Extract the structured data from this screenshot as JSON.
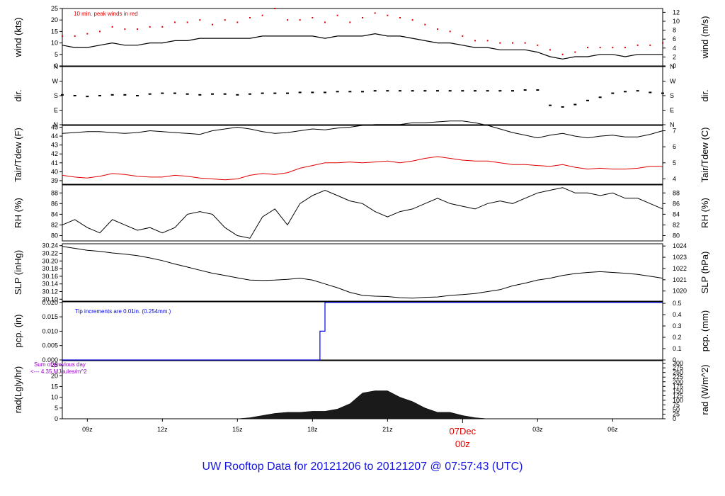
{
  "footer": {
    "title": "UW Rooftop Data for 20121206  to  20121207 @ 07:57:43  (UTC)",
    "title_color": "#1616e0"
  },
  "colors": {
    "line": "#000000",
    "red": "#e00000",
    "blue": "#0000ee",
    "purple": "#9900cc"
  },
  "x_axis": {
    "min": 0,
    "max": 24,
    "ticks": [
      {
        "x": 1,
        "label": "09z"
      },
      {
        "x": 4,
        "label": "12z"
      },
      {
        "x": 7,
        "label": "15z"
      },
      {
        "x": 10,
        "label": "18z"
      },
      {
        "x": 13,
        "label": "21z"
      },
      {
        "x": 19,
        "label": "03z"
      },
      {
        "x": 22,
        "label": "06z"
      }
    ],
    "day_mark": {
      "x": 16,
      "date": "07Dec",
      "hour": "00z"
    }
  },
  "chart_data": [
    {
      "type": "line",
      "id": "wind",
      "ylabel": "wind (kts)",
      "ylabel_right": "wind (m/s)",
      "ylim": [
        0,
        25
      ],
      "right_ylim": [
        0,
        12.86
      ],
      "yticks": [
        0,
        5,
        10,
        15,
        20,
        25
      ],
      "right_ticks": [
        0,
        2,
        4,
        6,
        8,
        10,
        12
      ],
      "annotation": "10 min. peak winds in red",
      "series": [
        {
          "role": "mean",
          "x": [
            0,
            0.5,
            1,
            1.5,
            2,
            2.5,
            3,
            3.5,
            4,
            4.5,
            5,
            5.5,
            6,
            6.5,
            7,
            7.5,
            8,
            8.5,
            9,
            9.5,
            10,
            10.5,
            11,
            11.5,
            12,
            12.5,
            13,
            13.5,
            14,
            14.5,
            15,
            15.5,
            16,
            16.5,
            17,
            17.5,
            18,
            18.5,
            19,
            19.5,
            20,
            20.5,
            21,
            21.5,
            22,
            22.5,
            23,
            23.5,
            24
          ],
          "y": [
            9,
            8,
            8,
            9,
            10,
            9,
            9,
            10,
            10,
            11,
            11,
            12,
            12,
            12,
            12,
            12,
            13,
            13,
            13,
            13,
            13,
            12,
            13,
            13,
            13,
            14,
            13,
            13,
            12,
            11,
            10,
            10,
            9,
            8,
            8,
            7,
            7,
            7,
            6,
            4,
            3,
            4,
            4,
            5,
            5,
            4,
            5,
            5,
            5
          ]
        },
        {
          "role": "peak",
          "x": [
            0,
            0.5,
            1,
            1.5,
            2,
            2.5,
            3,
            3.5,
            4,
            4.5,
            5,
            5.5,
            6,
            6.5,
            7,
            7.5,
            8,
            8.5,
            9,
            9.5,
            10,
            10.5,
            11,
            11.5,
            12,
            12.5,
            13,
            13.5,
            14,
            14.5,
            15,
            15.5,
            16,
            16.5,
            17,
            17.5,
            18,
            18.5,
            19,
            19.5,
            20,
            20.5,
            21,
            21.5,
            22,
            22.5,
            23,
            23.5,
            24
          ],
          "y": [
            13,
            13,
            14,
            15,
            17,
            16,
            16,
            17,
            17,
            19,
            19,
            20,
            18,
            20,
            19,
            21,
            22,
            25,
            20,
            20,
            21,
            19,
            22,
            19,
            21,
            23,
            22,
            21,
            20,
            18,
            16,
            15,
            13,
            11,
            11,
            10,
            10,
            10,
            9,
            7,
            5,
            6,
            8,
            8,
            8,
            8,
            9,
            9,
            10
          ]
        }
      ]
    },
    {
      "type": "scatter",
      "id": "dir",
      "ylabel": "dir.",
      "ylabel_right": "dir.",
      "ytick_labels": [
        "N",
        "E",
        "S",
        "W",
        "N"
      ],
      "ytick_values": [
        0,
        90,
        180,
        270,
        360
      ],
      "ylim": [
        0,
        360
      ],
      "x": [
        0,
        0.5,
        1,
        1.5,
        2,
        2.5,
        3,
        3.5,
        4,
        4.5,
        5,
        5.5,
        6,
        6.5,
        7,
        7.5,
        8,
        8.5,
        9,
        9.5,
        10,
        10.5,
        11,
        11.5,
        12,
        12.5,
        13,
        13.5,
        14,
        14.5,
        15,
        15.5,
        16,
        16.5,
        17,
        17.5,
        18,
        18.5,
        19,
        19.5,
        20,
        20.5,
        21,
        21.5,
        22,
        22.5,
        23,
        23.5,
        24
      ],
      "y": [
        185,
        180,
        175,
        180,
        185,
        185,
        180,
        190,
        195,
        195,
        190,
        185,
        190,
        190,
        185,
        190,
        195,
        195,
        195,
        200,
        200,
        200,
        205,
        205,
        205,
        210,
        210,
        210,
        210,
        210,
        210,
        210,
        210,
        210,
        210,
        210,
        210,
        215,
        215,
        120,
        110,
        125,
        150,
        170,
        195,
        205,
        210,
        200,
        195
      ]
    },
    {
      "type": "line",
      "id": "temp",
      "ylabel": "Tair/Tdew (F)",
      "ylabel_right": "Tair/Tdew (C)",
      "ylim": [
        38.6,
        45.2
      ],
      "right_ylim": [
        3.667,
        7.333
      ],
      "yticks": [
        39,
        40,
        41,
        42,
        43,
        44,
        45
      ],
      "right_ticks": [
        4,
        5,
        6,
        7
      ],
      "series": [
        {
          "role": "air",
          "color": "#000000",
          "x": [
            0,
            0.5,
            1,
            1.5,
            2,
            2.5,
            3,
            3.5,
            4,
            4.5,
            5,
            5.5,
            6,
            6.5,
            7,
            7.5,
            8,
            8.5,
            9,
            9.5,
            10,
            10.5,
            11,
            11.5,
            12,
            12.5,
            13,
            13.5,
            14,
            14.5,
            15,
            15.5,
            16,
            16.5,
            17,
            17.5,
            18,
            18.5,
            19,
            19.5,
            20,
            20.5,
            21,
            21.5,
            22,
            22.5,
            23,
            23.5,
            24
          ],
          "y": [
            44.3,
            44.4,
            44.5,
            44.5,
            44.4,
            44.3,
            44.4,
            44.6,
            44.5,
            44.4,
            44.3,
            44.2,
            44.6,
            44.8,
            45.0,
            44.8,
            44.5,
            44.3,
            44.4,
            44.6,
            44.8,
            44.7,
            44.9,
            45.0,
            45.2,
            45.3,
            45.3,
            45.3,
            45.5,
            45.5,
            45.6,
            45.7,
            45.7,
            45.5,
            45.2,
            44.8,
            44.4,
            44.1,
            43.8,
            44.1,
            44.3,
            44.0,
            43.8,
            44.0,
            44.1,
            43.9,
            43.9,
            44.2,
            44.6
          ]
        },
        {
          "role": "dew",
          "color": "#e00000",
          "x": [
            0,
            0.5,
            1,
            1.5,
            2,
            2.5,
            3,
            3.5,
            4,
            4.5,
            5,
            5.5,
            6,
            6.5,
            7,
            7.5,
            8,
            8.5,
            9,
            9.5,
            10,
            10.5,
            11,
            11.5,
            12,
            12.5,
            13,
            13.5,
            14,
            14.5,
            15,
            15.5,
            16,
            16.5,
            17,
            17.5,
            18,
            18.5,
            19,
            19.5,
            20,
            20.5,
            21,
            21.5,
            22,
            22.5,
            23,
            23.5,
            24
          ],
          "y": [
            39.6,
            39.4,
            39.3,
            39.5,
            39.8,
            39.7,
            39.5,
            39.4,
            39.4,
            39.6,
            39.5,
            39.3,
            39.2,
            39.1,
            39.2,
            39.6,
            39.8,
            39.7,
            39.9,
            40.4,
            40.7,
            41.0,
            41.0,
            41.1,
            41.0,
            41.1,
            41.2,
            41.0,
            41.2,
            41.5,
            41.7,
            41.5,
            41.3,
            41.2,
            41.2,
            41.0,
            40.8,
            40.8,
            40.7,
            40.6,
            40.8,
            40.5,
            40.3,
            40.4,
            40.3,
            40.3,
            40.4,
            40.6,
            40.6
          ]
        }
      ]
    },
    {
      "type": "line",
      "id": "rh",
      "ylabel": "RH (%)",
      "ylabel_right": "RH (%)",
      "ylim": [
        79,
        89.5
      ],
      "yticks": [
        80,
        82,
        84,
        86,
        88
      ],
      "right_ticks": [
        80,
        82,
        84,
        86,
        88
      ],
      "x": [
        0,
        0.5,
        1,
        1.5,
        2,
        2.5,
        3,
        3.5,
        4,
        4.5,
        5,
        5.5,
        6,
        6.5,
        7,
        7.5,
        8,
        8.5,
        9,
        9.5,
        10,
        10.5,
        11,
        11.5,
        12,
        12.5,
        13,
        13.5,
        14,
        14.5,
        15,
        15.5,
        16,
        16.5,
        17,
        17.5,
        18,
        18.5,
        19,
        19.5,
        20,
        20.5,
        21,
        21.5,
        22,
        22.5,
        23,
        23.5,
        24
      ],
      "y": [
        82,
        83,
        81.5,
        80.5,
        83,
        82,
        81,
        81.5,
        80.5,
        81.5,
        84,
        84.5,
        84,
        81.5,
        80,
        79.5,
        83.5,
        85,
        82,
        86,
        87.5,
        88.5,
        87.5,
        86.5,
        86,
        84.5,
        83.5,
        84.5,
        85,
        86,
        87,
        86,
        85.5,
        85,
        86,
        86.5,
        86,
        87,
        88,
        88.5,
        89,
        88,
        88,
        87.5,
        88,
        87,
        87,
        86,
        85
      ]
    },
    {
      "type": "line",
      "id": "slp",
      "ylabel": "SLP (inHg)",
      "ylabel_right": "SLP (hPa)",
      "ylim": [
        30.095,
        30.245
      ],
      "right_ylim": [
        1019.1,
        1024.2
      ],
      "yticks": [
        30.1,
        30.12,
        30.14,
        30.16,
        30.18,
        30.2,
        30.22,
        30.24
      ],
      "right_ticks": [
        1020,
        1021,
        1022,
        1023,
        1024
      ],
      "ytick_labels": [
        "30.10",
        "30.12",
        "30.14",
        "30.16",
        "30.18",
        "30.20",
        "30.22",
        "30.24"
      ],
      "x": [
        0,
        0.5,
        1,
        1.5,
        2,
        2.5,
        3,
        3.5,
        4,
        4.5,
        5,
        5.5,
        6,
        6.5,
        7,
        7.5,
        8,
        8.5,
        9,
        9.5,
        10,
        10.5,
        11,
        11.5,
        12,
        12.5,
        13,
        13.5,
        14,
        14.5,
        15,
        15.5,
        16,
        16.5,
        17,
        17.5,
        18,
        18.5,
        19,
        19.5,
        20,
        20.5,
        21,
        21.5,
        22,
        22.5,
        23,
        23.5,
        24
      ],
      "y": [
        30.238,
        30.233,
        30.228,
        30.225,
        30.221,
        30.218,
        30.214,
        30.208,
        30.201,
        30.192,
        30.184,
        30.176,
        30.168,
        30.162,
        30.156,
        30.15,
        30.149,
        30.15,
        30.152,
        30.155,
        30.15,
        30.14,
        30.13,
        30.118,
        30.11,
        30.108,
        30.107,
        30.104,
        30.103,
        30.105,
        30.106,
        30.11,
        30.112,
        30.115,
        30.12,
        30.125,
        30.135,
        30.142,
        30.15,
        30.155,
        30.162,
        30.167,
        30.17,
        30.172,
        30.17,
        30.168,
        30.165,
        30.16,
        30.155
      ]
    },
    {
      "type": "line",
      "id": "pcp",
      "ylabel": "pcp. (in)",
      "ylabel_right": "pcp. (mm)",
      "ylim": [
        0,
        0.0202
      ],
      "right_ylim": [
        0,
        0.513
      ],
      "yticks": [
        0,
        0.005,
        0.01,
        0.015,
        0.02
      ],
      "ytick_labels": [
        "0.000",
        "0.005",
        "0.010",
        "0.015",
        "0.020"
      ],
      "right_ticks": [
        0,
        0.1,
        0.2,
        0.3,
        0.4,
        0.5
      ],
      "annotation": "Tip increments are 0.01in. (0.254mm.)",
      "x": [
        0,
        10.3,
        10.3,
        10.5,
        10.5,
        24
      ],
      "y": [
        0,
        0,
        0.01,
        0.01,
        0.02,
        0.02
      ]
    },
    {
      "type": "area",
      "id": "rad",
      "ylabel": "rad(Lgly/hr)",
      "ylabel_right": "rad (W/m^2)",
      "ylim": [
        0,
        27
      ],
      "right_ylim": [
        0,
        313.9
      ],
      "yticks": [
        0,
        5,
        10,
        15,
        20,
        25
      ],
      "right_ticks": [
        0,
        25,
        50,
        75,
        100,
        125,
        150,
        175,
        200,
        225,
        250,
        275,
        300
      ],
      "annotation_line1": "Sum of previous day",
      "annotation_line2": "<--- 4.35 MJoules/m^2",
      "x": [
        0,
        7,
        7.5,
        8,
        8.5,
        9,
        9.5,
        10,
        10.5,
        11,
        11.5,
        12,
        12.5,
        13,
        13.5,
        14,
        14.5,
        15,
        15.5,
        16,
        16.5,
        17,
        24
      ],
      "y": [
        0,
        0,
        0.5,
        1.5,
        2.5,
        3,
        3,
        3.5,
        3.5,
        4.5,
        7,
        12,
        13,
        13,
        10,
        8,
        5,
        3,
        3,
        1.5,
        0.5,
        0,
        0
      ]
    }
  ]
}
